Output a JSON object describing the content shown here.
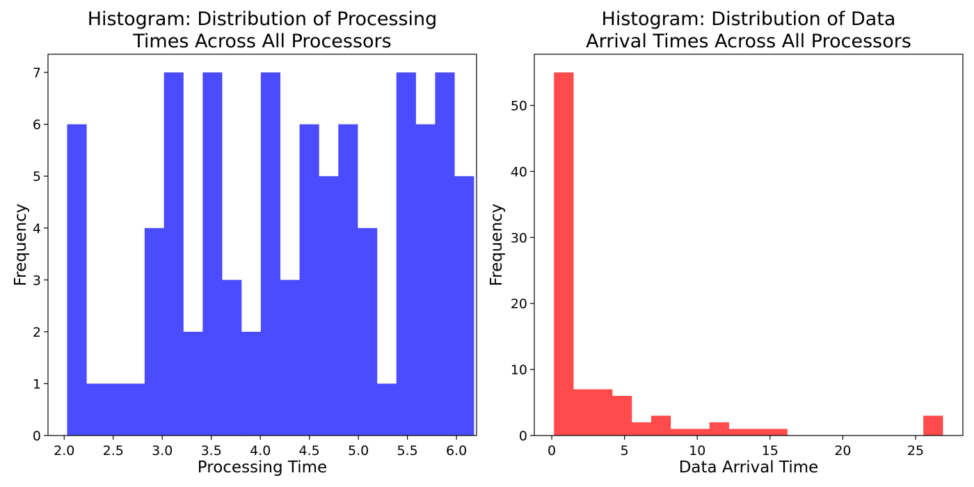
{
  "chart_data": [
    {
      "type": "bar",
      "histogram": true,
      "title_lines": [
        "Histogram: Distribution of Processing",
        "Times Across All Processors"
      ],
      "xlabel": "Processing Time",
      "ylabel": "Frequency",
      "color": "#4b4bff",
      "bin_start": 2.03,
      "bin_width": 0.1975,
      "values": [
        6,
        1,
        1,
        1,
        4,
        7,
        2,
        7,
        3,
        2,
        7,
        3,
        6,
        5,
        6,
        4,
        1,
        7,
        6,
        7,
        5
      ],
      "xlim": [
        1.835,
        6.205
      ],
      "ylim": [
        0,
        7.35
      ],
      "xticks": [
        2.0,
        2.5,
        3.0,
        3.5,
        4.0,
        4.5,
        5.0,
        5.5,
        6.0
      ],
      "xtick_labels": [
        "2.0",
        "2.5",
        "3.0",
        "3.5",
        "4.0",
        "4.5",
        "5.0",
        "5.5",
        "6.0"
      ],
      "yticks": [
        0,
        1,
        2,
        3,
        4,
        5,
        6,
        7
      ],
      "ytick_labels": [
        "0",
        "1",
        "2",
        "3",
        "4",
        "5",
        "6",
        "7"
      ]
    },
    {
      "type": "bar",
      "histogram": true,
      "title_lines": [
        "Histogram: Distribution of Data",
        "Arrival Times Across All Processors"
      ],
      "xlabel": "Data Arrival Time",
      "ylabel": "Frequency",
      "color": "#ff4b4b",
      "bin_start": 0.15,
      "bin_width": 1.336,
      "values": [
        55,
        7,
        7,
        6,
        2,
        3,
        1,
        1,
        2,
        1,
        1,
        1,
        0,
        0,
        0,
        0,
        0,
        0,
        0,
        3
      ],
      "xlim": [
        -1.2,
        28.25
      ],
      "ylim": [
        0,
        57.75
      ],
      "xticks": [
        0,
        5,
        10,
        15,
        20,
        25
      ],
      "xtick_labels": [
        "0",
        "5",
        "10",
        "15",
        "20",
        "25"
      ],
      "yticks": [
        0,
        10,
        20,
        30,
        40,
        50
      ],
      "ytick_labels": [
        "0",
        "10",
        "20",
        "30",
        "40",
        "50"
      ]
    }
  ]
}
